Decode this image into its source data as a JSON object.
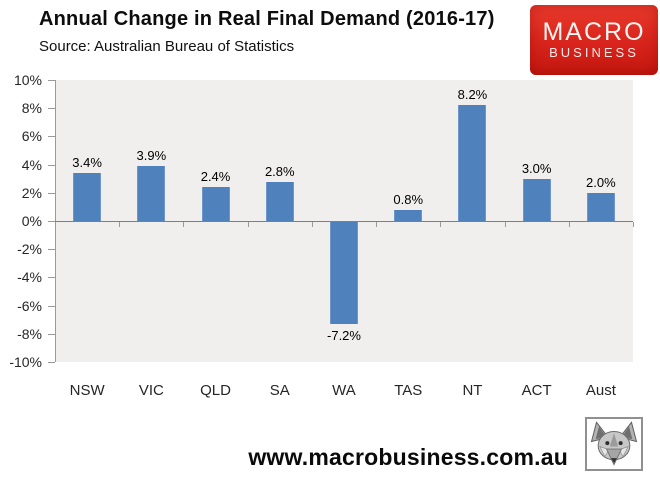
{
  "header": {
    "title": "Annual Change in Real Final Demand (2016-17)",
    "subtitle": "Source: Australian Bureau of Statistics"
  },
  "logo": {
    "line1": "MACRO",
    "line2": "BUSINESS",
    "brand_red": "#d8241c",
    "text_color": "#f7f4f2"
  },
  "chart_data": {
    "type": "bar",
    "title": "Annual Change in Real Final Demand (2016-17)",
    "categories": [
      "NSW",
      "VIC",
      "QLD",
      "SA",
      "WA",
      "TAS",
      "NT",
      "ACT",
      "Aust"
    ],
    "values": [
      3.4,
      3.9,
      2.4,
      2.8,
      -7.2,
      0.8,
      8.2,
      3.0,
      2.0
    ],
    "value_labels": [
      "3.4%",
      "3.9%",
      "2.4%",
      "2.8%",
      "-7.2%",
      "0.8%",
      "8.2%",
      "3.0%",
      "2.0%"
    ],
    "xlabel": "",
    "ylabel": "",
    "ylim": [
      -10,
      10
    ],
    "ytick_step": 2,
    "ytick_labels": [
      "10%",
      "8%",
      "6%",
      "4%",
      "2%",
      "0%",
      "-2%",
      "-4%",
      "-6%",
      "-8%",
      "-10%"
    ],
    "grid": false,
    "legend": "none",
    "bar_color": "#4f81bd",
    "bar_edge_color": "#6d97c9",
    "plot_bg": "#f0efee",
    "axis_color": "#9a9a9a",
    "zero_line_color": "#7f7f7f"
  },
  "footer": {
    "url": "www.macrobusiness.com.au"
  },
  "icons": {
    "fox": "fox-head-icon"
  }
}
